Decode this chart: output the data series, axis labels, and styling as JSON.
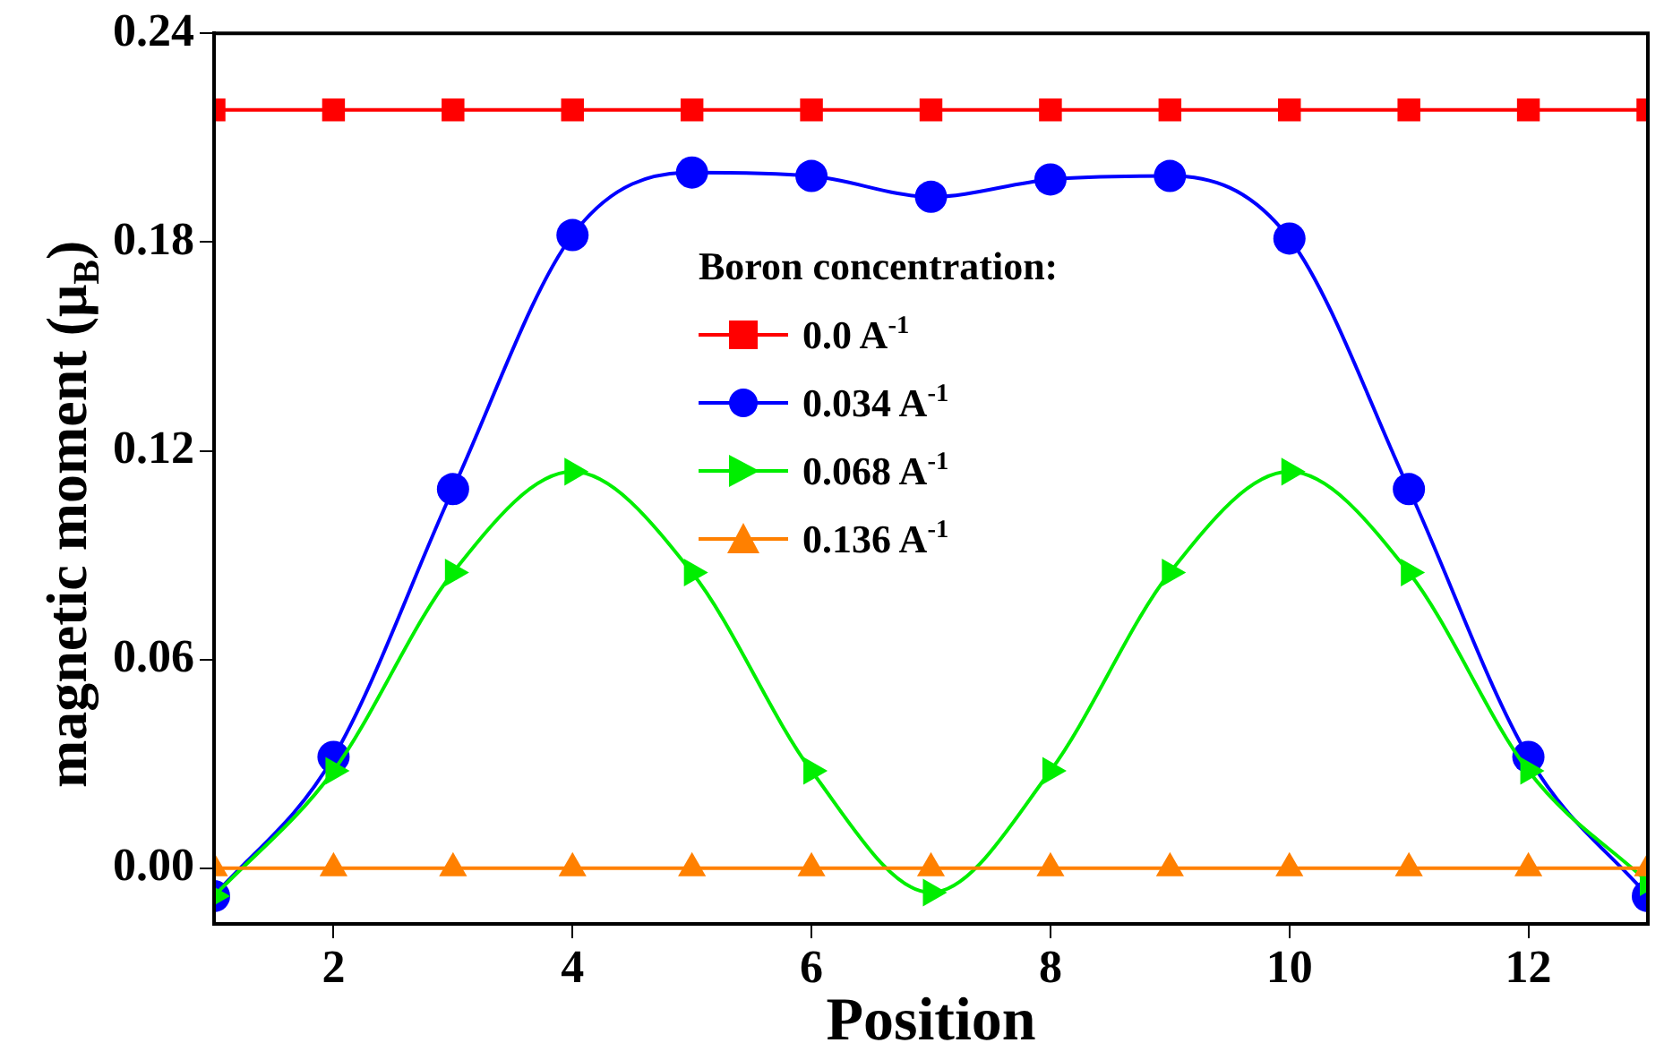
{
  "chart_data": {
    "type": "line",
    "xlabel": "Position",
    "ylabel": "magnetic moment (μ$_{B}$)",
    "legend_title": "Boron concentration:",
    "legend": "top",
    "grid": false,
    "line_style": "solid",
    "x": [
      1,
      2,
      3,
      4,
      5,
      6,
      7,
      8,
      9,
      10,
      11,
      12,
      13
    ],
    "xlim": [
      1,
      13
    ],
    "xticks": [
      2,
      4,
      6,
      8,
      10,
      12
    ],
    "ylim": [
      -0.016,
      0.24
    ],
    "yticks": [
      {
        "value": 0,
        "label": "0.00"
      },
      {
        "value": 0.06,
        "label": "0.06"
      },
      {
        "value": 0.12,
        "label": "0.12"
      },
      {
        "value": 0.18,
        "label": "0.18"
      },
      {
        "value": 0.24,
        "label": "0.24"
      }
    ],
    "series": [
      {
        "name": "0.0 A$^{-1}$",
        "color": "#ff0000",
        "marker": "square",
        "values": [
          0.218,
          0.218,
          0.218,
          0.218,
          0.218,
          0.218,
          0.218,
          0.218,
          0.218,
          0.218,
          0.218,
          0.218,
          0.218
        ]
      },
      {
        "name": "0.034 A$^{-1}$",
        "color": "#0000ff",
        "marker": "circle",
        "values": [
          -0.008,
          0.032,
          0.109,
          0.182,
          0.2,
          0.199,
          0.193,
          0.198,
          0.199,
          0.181,
          0.109,
          0.032,
          -0.008
        ]
      },
      {
        "name": "0.068 A$^{-1}$",
        "color": "#00ee00",
        "marker": "triangle-right",
        "values": [
          -0.008,
          0.028,
          0.085,
          0.114,
          0.085,
          0.028,
          -0.007,
          0.028,
          0.085,
          0.114,
          0.085,
          0.028,
          -0.004
        ]
      },
      {
        "name": "0.136 A$^{-1}$",
        "color": "#ff8000",
        "marker": "triangle",
        "values": [
          0,
          0,
          0,
          0,
          0,
          0,
          0,
          0,
          0,
          0,
          0,
          0,
          0
        ]
      }
    ]
  }
}
